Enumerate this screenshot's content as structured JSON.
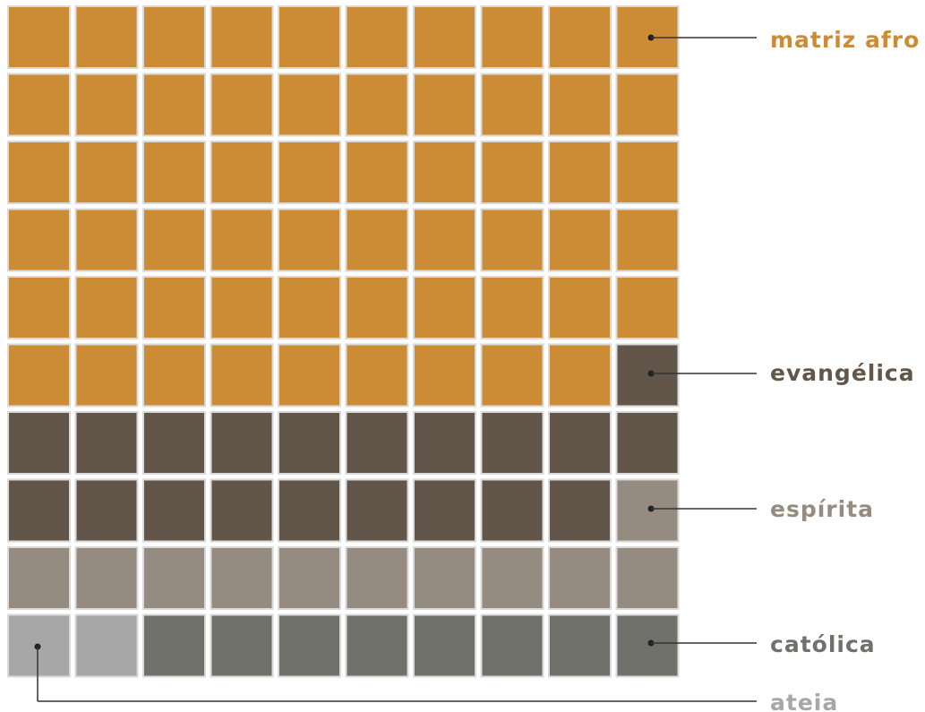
{
  "chart_data": {
    "type": "waffle",
    "grid": {
      "rows": 10,
      "cols": 10
    },
    "categories": [
      {
        "label": "matriz afro",
        "count": 59,
        "color": "#CC8C36"
      },
      {
        "label": "evangélica",
        "count": 20,
        "color": "#62554A"
      },
      {
        "label": "espírita",
        "count": 11,
        "color": "#958B80"
      },
      {
        "label": "católica",
        "count": 8,
        "color": "#71716C"
      },
      {
        "label": "ateia",
        "count": 2,
        "color": "#A7A7A7"
      }
    ],
    "fill_order": "top-left to right, then next row; last row reversed",
    "cell_background": "#DADADA"
  }
}
